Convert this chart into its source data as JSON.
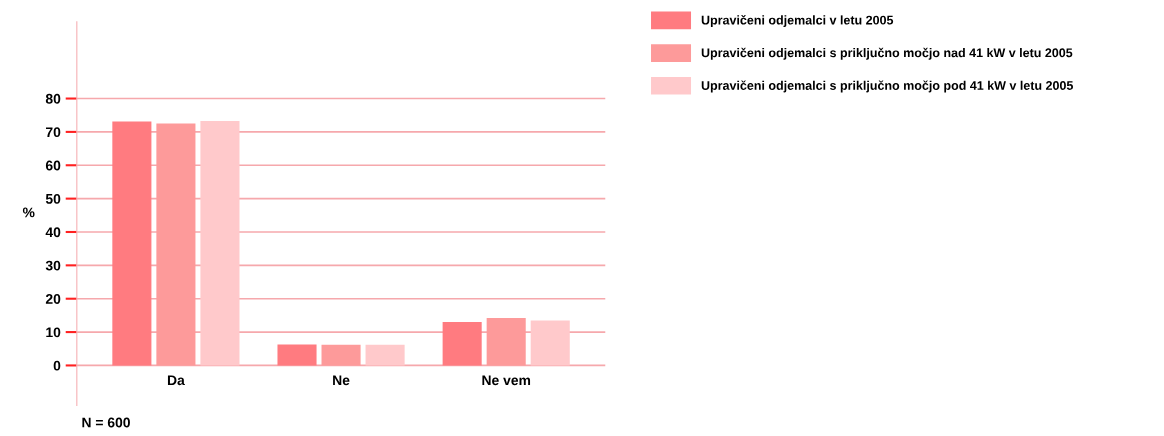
{
  "chart_data": {
    "type": "bar",
    "ylabel": "%",
    "categories": [
      "Da",
      "Ne",
      "Ne vem"
    ],
    "series": [
      {
        "name": "Upravičeni odjemalci v letu 2005",
        "color": "#ff7b80",
        "values": [
          73.1,
          6.3,
          13.0
        ]
      },
      {
        "name": "Upravičeni odjemalci s priključno močjo nad 41 kW v letu 2005",
        "color": "#fd9a9a",
        "values": [
          72.5,
          6.2,
          14.2
        ]
      },
      {
        "name": "Upravičeni odjemalci s priključno močjo pod 41 kW v letu 2005",
        "color": "#ffc9cb",
        "values": [
          73.3,
          6.2,
          13.5
        ]
      }
    ],
    "ylim": [
      -12,
      103
    ],
    "yticks": [
      0,
      10,
      20,
      30,
      40,
      50,
      60,
      70,
      80
    ],
    "grid": "y",
    "legend": "right",
    "annotations": [
      "N = 600"
    ]
  }
}
